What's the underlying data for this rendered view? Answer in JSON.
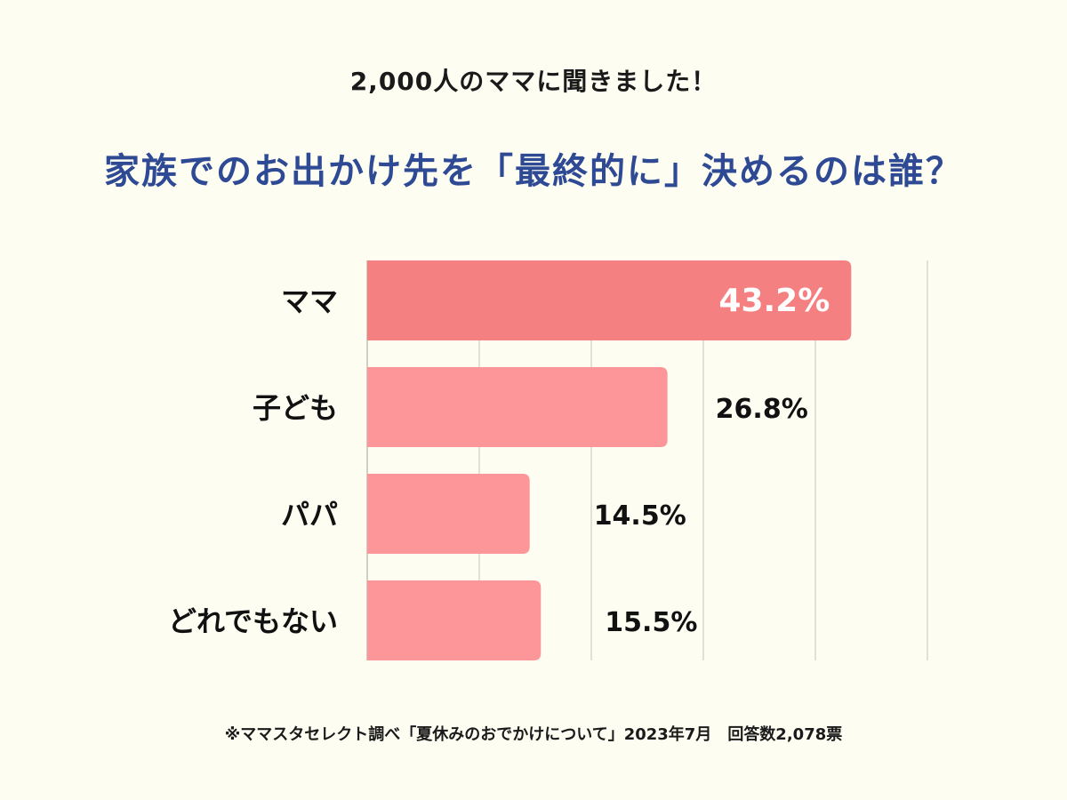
{
  "header": {
    "subtitle": "2,000人のママに聞きました！",
    "title": "家族でのお出かけ先を「最終的に」決めるのは誰？"
  },
  "chart_data": {
    "type": "bar",
    "orientation": "horizontal",
    "title": "家族でのお出かけ先を「最終的に」決めるのは誰？",
    "categories": [
      "ママ",
      "子ども",
      "パパ",
      "どれでもない"
    ],
    "values": [
      43.2,
      26.8,
      14.5,
      15.5
    ],
    "value_labels": [
      "43.2%",
      "26.8%",
      "14.5%",
      "15.5%"
    ],
    "highlight_index": 0,
    "xlim": [
      0,
      50
    ],
    "grid": true,
    "colors": {
      "highlight": "#f58082",
      "bar": "#fd9698",
      "grid": "#d8d8d0",
      "label": "#111111",
      "highlight_label": "#ffffff"
    }
  },
  "footer": {
    "note": "※ママスタセレクト調べ「夏休みのおでかけについて」2023年7月　回答数2,078票"
  }
}
